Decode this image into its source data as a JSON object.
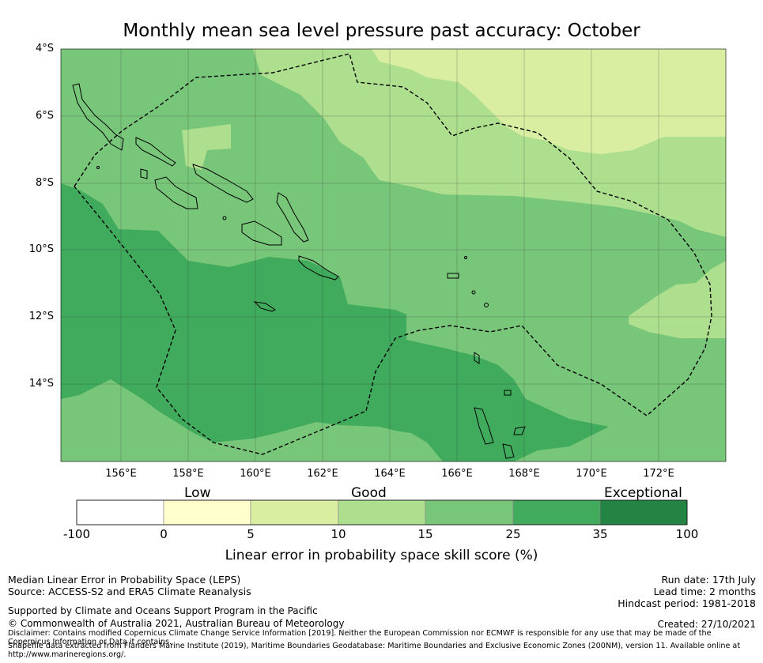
{
  "title": "Monthly mean sea level pressure past accuracy: October",
  "map": {
    "lat_labels": [
      "4°S",
      "6°S",
      "8°S",
      "10°S",
      "12°S",
      "14°S"
    ],
    "lon_labels": [
      "156°E",
      "158°E",
      "160°E",
      "162°E",
      "164°E",
      "166°E",
      "168°E",
      "170°E",
      "172°E"
    ],
    "extent": {
      "lon": [
        154.0,
        173.8
      ],
      "lat": [
        -16.2,
        -3.9
      ]
    },
    "category_colors": [
      "#ffffff",
      "#fffecc",
      "#d9eea1",
      "#addf8e",
      "#78c679",
      "#41ab5d",
      "#238443"
    ]
  },
  "colorbar": {
    "categories": [
      "Low",
      "Good",
      "Exceptional"
    ],
    "ticks": [
      "-100",
      "0",
      "5",
      "10",
      "15",
      "25",
      "35",
      "100"
    ],
    "colors": [
      "#ffffff",
      "#fffecc",
      "#d9eea1",
      "#addf8e",
      "#78c679",
      "#41ab5d",
      "#238443"
    ],
    "title": "Linear error in probability space skill score (%)"
  },
  "footer": {
    "left1": "Median Linear Error in Probability Space (LEPS)",
    "left2": "Source: ACCESS-S2 and ERA5 Climate Reanalysis",
    "support": "Supported by Climate and Oceans Support Program in the Pacific",
    "copyright": "© Commonwealth of Australia 2021, Australian Bureau of Meteorology",
    "disclaimer": "Disclaimer: Contains modified Copernicus Climate Change Service Information [2019]. Neither the European Commission nor ECMWF is responsible for any use that may be made of the Copernicus Information or Data it contains.",
    "shapefile": "Shapefile data extracted from Flanders Marine Institute (2019), Maritime Boundaries Geodatabase: Maritime Boundaries and Exclusive Economic Zones (200NM), version 11. Available online at http://www.marineregions.org/.",
    "run_date": "Run date: 17th July",
    "lead_time": "Lead time: 2 months",
    "hindcast": "Hindcast period: 1981-2018",
    "created": "Created: 27/10/2021"
  }
}
